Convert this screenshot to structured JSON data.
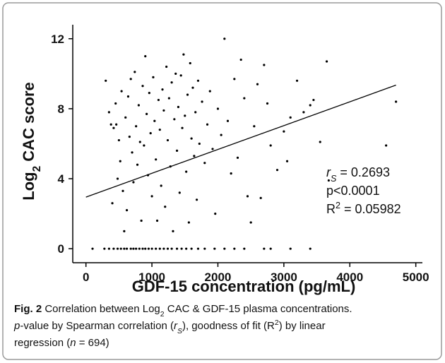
{
  "chart_data": {
    "type": "scatter",
    "xlabel": "GDF-15 concentration (pg/mL)",
    "ylabel": [
      {
        "text": "Log"
      },
      {
        "text": "2",
        "style": "sub"
      },
      {
        "text": " CAC score"
      }
    ],
    "x": [
      100,
      280,
      350,
      420,
      480,
      530,
      580,
      620,
      680,
      720,
      760,
      810,
      860,
      900,
      950,
      1000,
      1060,
      1120,
      1180,
      1240,
      1300,
      1380,
      1450,
      1520,
      1600,
      1700,
      1800,
      1950,
      2100,
      2250,
      2400,
      2700,
      2800,
      3100,
      3400,
      300,
      350,
      380,
      400,
      420,
      450,
      460,
      480,
      500,
      520,
      540,
      560,
      580,
      600,
      620,
      640,
      660,
      680,
      700,
      720,
      740,
      760,
      780,
      800,
      820,
      840,
      860,
      880,
      900,
      920,
      940,
      960,
      980,
      1000,
      1020,
      1040,
      1060,
      1080,
      1100,
      1120,
      1140,
      1160,
      1180,
      1200,
      1220,
      1240,
      1260,
      1280,
      1300,
      1320,
      1340,
      1360,
      1380,
      1400,
      1420,
      1440,
      1460,
      1480,
      1500,
      1520,
      1540,
      1560,
      1580,
      1600,
      1620,
      1640,
      1660,
      1680,
      1700,
      1720,
      1760,
      1800,
      1840,
      1880,
      1920,
      1960,
      2000,
      2050,
      2100,
      2150,
      2200,
      2250,
      2300,
      2350,
      2400,
      2450,
      2500,
      2550,
      2600,
      2650,
      2700,
      2750,
      2800,
      2900,
      3000,
      3050,
      3100,
      3200,
      3300,
      3400,
      3450,
      3550,
      3650,
      3680,
      4550,
      4700
    ],
    "y": [
      0,
      0,
      0,
      0,
      0,
      0,
      0,
      0,
      0,
      0,
      0,
      0,
      0,
      0,
      0,
      0,
      0,
      0,
      0,
      0,
      0,
      0,
      0,
      0,
      0,
      0,
      0,
      0,
      0,
      0,
      0,
      0,
      0,
      0,
      0,
      9.6,
      7.8,
      7.1,
      2.6,
      6.9,
      8.3,
      7.1,
      4.0,
      6.2,
      5.0,
      9.0,
      3.3,
      1.0,
      7.5,
      2.2,
      8.7,
      6.4,
      9.7,
      5.5,
      3.8,
      10.1,
      7.0,
      4.8,
      8.2,
      6.1,
      1.6,
      9.3,
      5.9,
      11.0,
      7.7,
      4.2,
      8.9,
      6.6,
      3.0,
      9.8,
      7.3,
      5.1,
      1.6,
      8.5,
      6.8,
      3.6,
      9.1,
      7.9,
      2.4,
      10.4,
      6.2,
      8.6,
      4.7,
      9.5,
      1.0,
      7.4,
      10.0,
      5.6,
      8.1,
      3.2,
      9.9,
      6.9,
      11.1,
      7.6,
      4.4,
      8.8,
      1.5,
      10.6,
      6.3,
      9.2,
      5.3,
      7.8,
      2.8,
      9.6,
      6.0,
      8.4,
      4.9,
      7.1,
      9.0,
      5.7,
      2.0,
      8.0,
      6.5,
      12.0,
      7.3,
      4.3,
      9.7,
      5.2,
      10.8,
      8.6,
      3.0,
      1.5,
      7.0,
      9.4,
      2.9,
      10.5,
      8.3,
      5.9,
      4.5,
      6.7,
      5.0,
      7.5,
      9.6,
      7.8,
      8.2,
      8.5,
      6.1,
      10.7,
      3.9,
      5.9,
      8.4
    ],
    "color": "#000000",
    "fit_line": {
      "x": [
        0,
        4700
      ],
      "y": [
        2.95,
        9.35
      ]
    },
    "xlim": [
      -200,
      5100
    ],
    "xticks": [
      0,
      1000,
      2000,
      3000,
      4000,
      5000
    ],
    "ylim": [
      -0.8,
      12.8
    ],
    "yticks": [
      0,
      4,
      8,
      12
    ],
    "annotations": [
      [
        {
          "text": "r",
          "style": "italic"
        },
        {
          "text": "S",
          "style": "italic-sub"
        },
        {
          "text": " = 0.2693"
        }
      ],
      [
        {
          "text": "p<0.0001"
        }
      ],
      [
        {
          "text": "R"
        },
        {
          "text": "2",
          "style": "sup"
        },
        {
          "text": " = 0.05982"
        }
      ]
    ],
    "caption": [
      [
        {
          "text": "Fig. 2",
          "style": "bold"
        },
        {
          "text": " Correlation between Log"
        },
        {
          "text": "2",
          "style": "sub"
        },
        {
          "text": " CAC & GDF-15 plasma concentrations."
        }
      ],
      [
        {
          "text": "p",
          "style": "italic"
        },
        {
          "text": "-value by Spearman correlation ("
        },
        {
          "text": "r",
          "style": "italic"
        },
        {
          "text": "S",
          "style": "italic-sub"
        },
        {
          "text": "), goodness of fit (R"
        },
        {
          "text": "2",
          "style": "sup"
        },
        {
          "text": ") by linear"
        }
      ],
      [
        {
          "text": "regression ("
        },
        {
          "text": "n",
          "style": "italic"
        },
        {
          "text": " = 694)"
        }
      ]
    ]
  }
}
